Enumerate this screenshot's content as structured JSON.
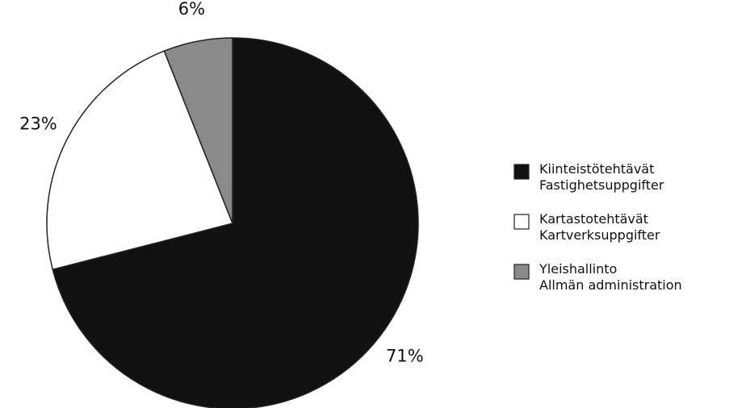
{
  "chart_data": {
    "type": "pie",
    "series": [
      {
        "name": "Kiinteistötehtävät\nFastighetsuppgifter",
        "color": "#111111",
        "values": [
          71
        ],
        "value_labels": [
          "71%"
        ]
      },
      {
        "name": "Kartastotehtävät\nKartverksuppgifter",
        "color": "#ffffff",
        "values": [
          23
        ],
        "value_labels": [
          "23%"
        ]
      },
      {
        "name": "Yleishallinto\nAllmän administration",
        "color": "#8a8a8a",
        "values": [
          6
        ],
        "value_labels": [
          "6%"
        ]
      }
    ]
  }
}
